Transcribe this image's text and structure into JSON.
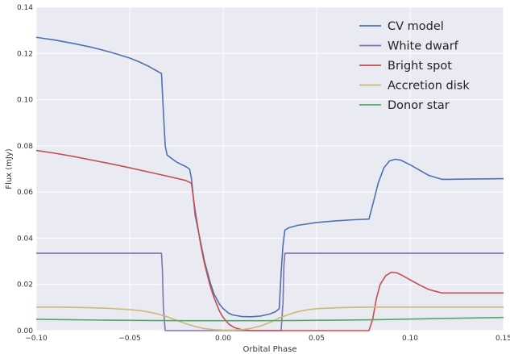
{
  "chart_data": {
    "type": "line",
    "title": "",
    "xlabel": "Orbital Phase",
    "ylabel": "Flux (mJy)",
    "xlim": [
      -0.1,
      0.15
    ],
    "ylim": [
      0.0,
      0.14
    ],
    "x_ticks": [
      -0.1,
      -0.05,
      0.0,
      0.05,
      0.1,
      0.15
    ],
    "x_tick_labels": [
      "−0.10",
      "−0.05",
      "0.00",
      "0.05",
      "0.10",
      "0.15"
    ],
    "y_ticks": [
      0.0,
      0.02,
      0.04,
      0.06,
      0.08,
      0.1,
      0.12,
      0.14
    ],
    "y_tick_labels": [
      "0.00",
      "0.02",
      "0.04",
      "0.06",
      "0.08",
      "0.10",
      "0.12",
      "0.14"
    ],
    "grid": true,
    "background": "#eaeaf2",
    "legend_position": "top-right",
    "series": [
      {
        "name": "CV model",
        "color": "#4c72b0",
        "x": [
          -0.1,
          -0.09,
          -0.08,
          -0.07,
          -0.06,
          -0.05,
          -0.045,
          -0.04,
          -0.035,
          -0.033,
          -0.032,
          -0.031,
          -0.03,
          -0.025,
          -0.02,
          -0.018,
          -0.017,
          -0.015,
          -0.012,
          -0.01,
          -0.007,
          -0.005,
          -0.002,
          0.0,
          0.003,
          0.005,
          0.01,
          0.015,
          0.02,
          0.025,
          0.028,
          0.03,
          0.031,
          0.032,
          0.033,
          0.035,
          0.04,
          0.05,
          0.06,
          0.07,
          0.078,
          0.08,
          0.083,
          0.086,
          0.089,
          0.092,
          0.095,
          0.1,
          0.105,
          0.11,
          0.117,
          0.12,
          0.13,
          0.14,
          0.15
        ],
        "y": [
          0.127,
          0.1258,
          0.1243,
          0.1226,
          0.1205,
          0.118,
          0.1164,
          0.1145,
          0.1122,
          0.1113,
          0.095,
          0.08,
          0.076,
          0.073,
          0.071,
          0.07,
          0.066,
          0.05,
          0.038,
          0.03,
          0.021,
          0.016,
          0.0115,
          0.0095,
          0.0075,
          0.0068,
          0.0061,
          0.006,
          0.0063,
          0.0072,
          0.0082,
          0.0095,
          0.025,
          0.037,
          0.0435,
          0.0445,
          0.0456,
          0.0468,
          0.0475,
          0.048,
          0.0483,
          0.0545,
          0.064,
          0.0705,
          0.0735,
          0.0742,
          0.0738,
          0.0718,
          0.0695,
          0.0672,
          0.0655,
          0.0655,
          0.0656,
          0.0657,
          0.0658
        ]
      },
      {
        "name": "White dwarf",
        "color": "#8172b2",
        "x": [
          -0.1,
          -0.033,
          -0.0325,
          -0.032,
          -0.031,
          0.0,
          0.03,
          0.031,
          0.032,
          0.0325,
          0.033,
          0.15
        ],
        "y": [
          0.0335,
          0.0335,
          0.026,
          0.01,
          0.0,
          0.0,
          0.0,
          0.0,
          0.012,
          0.028,
          0.0335,
          0.0335
        ]
      },
      {
        "name": "Bright spot",
        "color": "#c44e52",
        "x": [
          -0.1,
          -0.09,
          -0.08,
          -0.07,
          -0.06,
          -0.05,
          -0.04,
          -0.03,
          -0.02,
          -0.017,
          -0.015,
          -0.012,
          -0.01,
          -0.007,
          -0.005,
          -0.002,
          0.0,
          0.003,
          0.006,
          0.01,
          0.015,
          0.02,
          0.077,
          0.078,
          0.08,
          0.082,
          0.084,
          0.087,
          0.09,
          0.093,
          0.096,
          0.1,
          0.105,
          0.11,
          0.117,
          0.13,
          0.15
        ],
        "y": [
          0.078,
          0.0768,
          0.0754,
          0.0738,
          0.0722,
          0.0705,
          0.0687,
          0.0669,
          0.065,
          0.0638,
          0.052,
          0.037,
          0.029,
          0.0195,
          0.0145,
          0.0085,
          0.0057,
          0.0028,
          0.0013,
          0.0004,
          0.0,
          0.0,
          0.0,
          0.0,
          0.005,
          0.014,
          0.02,
          0.0238,
          0.0253,
          0.025,
          0.0238,
          0.022,
          0.0198,
          0.0178,
          0.0163,
          0.0163,
          0.0163
        ]
      },
      {
        "name": "Accretion disk",
        "color": "#ccb974",
        "x": [
          -0.1,
          -0.09,
          -0.08,
          -0.07,
          -0.06,
          -0.05,
          -0.045,
          -0.04,
          -0.035,
          -0.03,
          -0.025,
          -0.02,
          -0.015,
          -0.01,
          -0.005,
          0.0,
          0.005,
          0.01,
          0.015,
          0.02,
          0.025,
          0.03,
          0.035,
          0.04,
          0.045,
          0.05,
          0.06,
          0.07,
          0.08,
          0.1,
          0.12,
          0.15
        ],
        "y": [
          0.0102,
          0.0102,
          0.0101,
          0.0099,
          0.0096,
          0.0091,
          0.0087,
          0.0081,
          0.0072,
          0.006,
          0.0045,
          0.003,
          0.0018,
          0.0009,
          0.0004,
          0.0002,
          0.0002,
          0.0004,
          0.001,
          0.002,
          0.0035,
          0.0055,
          0.007,
          0.0082,
          0.009,
          0.0095,
          0.0099,
          0.0101,
          0.0102,
          0.0102,
          0.0102,
          0.0102
        ]
      },
      {
        "name": "Donor star",
        "color": "#55a868",
        "x": [
          -0.1,
          -0.08,
          -0.06,
          -0.04,
          -0.02,
          0.0,
          0.02,
          0.04,
          0.06,
          0.08,
          0.1,
          0.12,
          0.15
        ],
        "y": [
          0.0049,
          0.0047,
          0.0045,
          0.0044,
          0.0043,
          0.0043,
          0.0043,
          0.0044,
          0.0045,
          0.0047,
          0.005,
          0.0053,
          0.0057
        ]
      }
    ]
  }
}
